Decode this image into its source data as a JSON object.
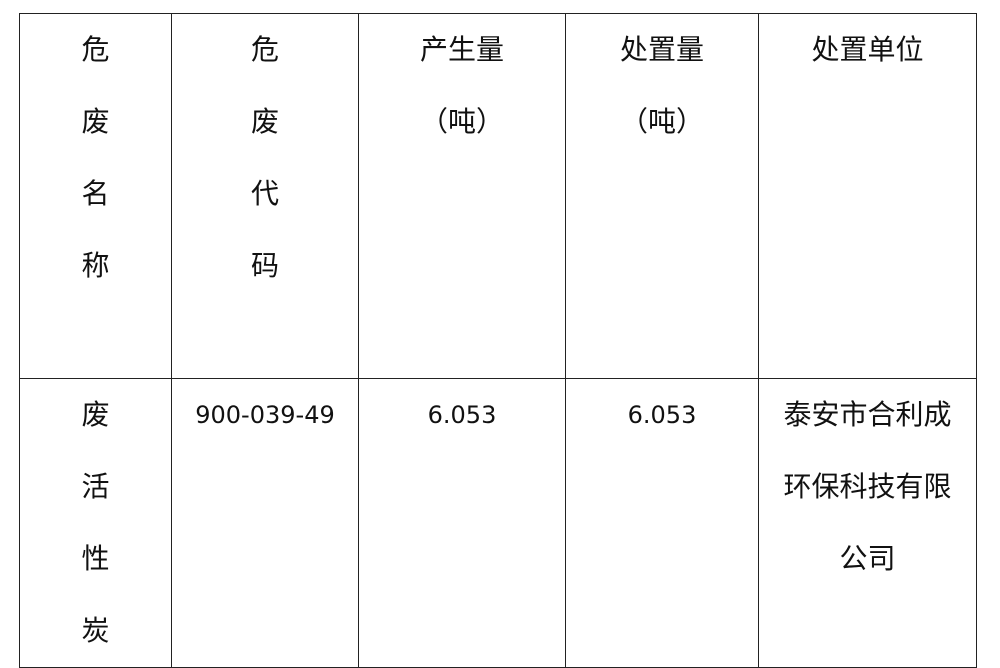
{
  "table": {
    "headers": [
      "危废名称",
      "危废代码",
      "产生量",
      "处置量",
      "处置单位"
    ],
    "header_units": {
      "generated": "（吨）",
      "disposed": "（吨）"
    },
    "rows": [
      {
        "name": "废活性炭",
        "code": "900-039-49",
        "generated": "6.053",
        "disposed": "6.053",
        "unit_lines": [
          "泰安市合利成",
          "环保科技有限",
          "公司"
        ]
      }
    ]
  }
}
